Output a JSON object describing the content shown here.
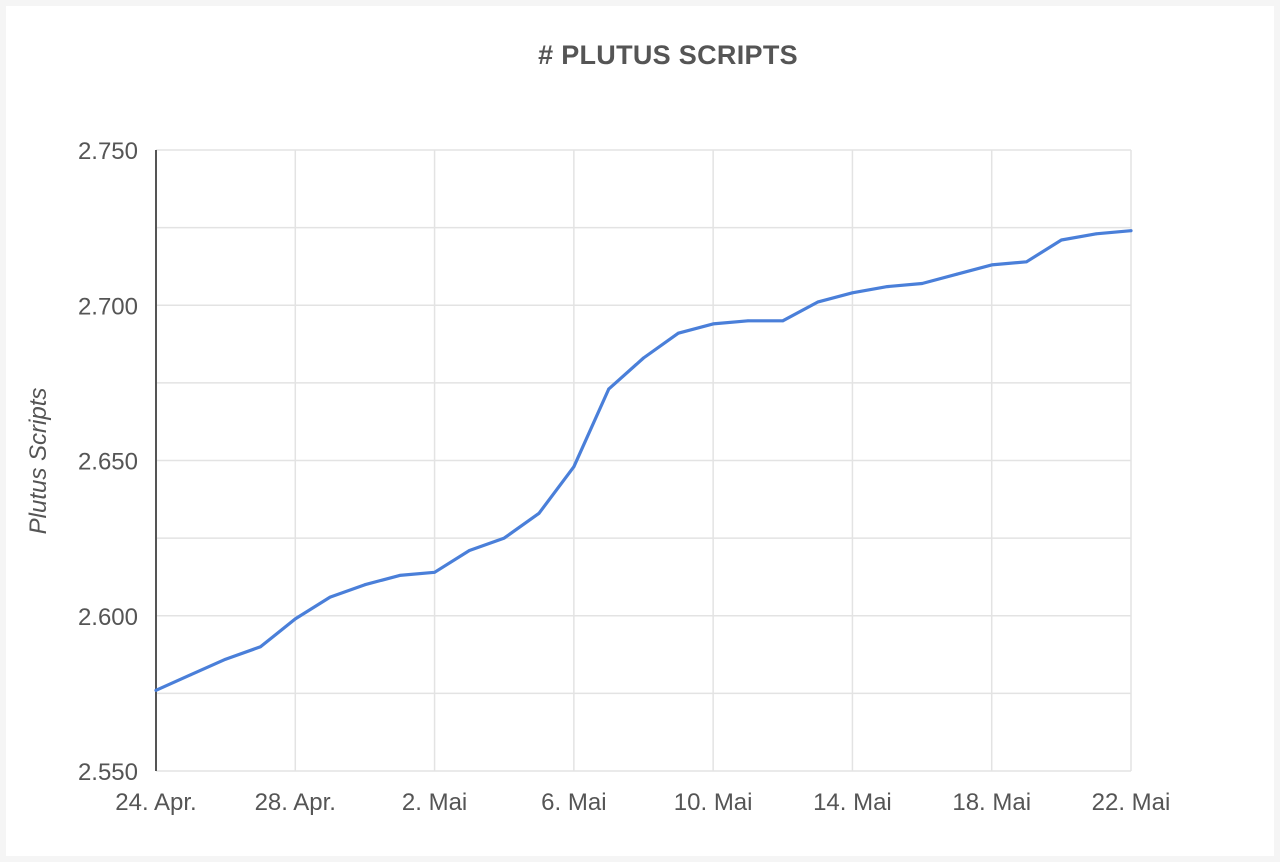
{
  "chart_data": {
    "type": "line",
    "title": "# PLUTUS SCRIPTS",
    "xlabel": "",
    "ylabel": "Plutus Scripts",
    "x_tick_labels": [
      "24. Apr.",
      "28. Apr.",
      "2. Mai",
      "6. Mai",
      "10. Mai",
      "14. Mai",
      "18. Mai",
      "22. Mai"
    ],
    "y_tick_labels": [
      "2.550",
      "2.600",
      "2.650",
      "2.700",
      "2.750"
    ],
    "ylim": [
      2550,
      2750
    ],
    "grid": true,
    "legend": "none",
    "x_dates": [
      "24. Apr.",
      "25. Apr.",
      "26. Apr.",
      "27. Apr.",
      "28. Apr.",
      "29. Apr.",
      "30. Apr.",
      "1. Mai",
      "2. Mai",
      "3. Mai",
      "4. Mai",
      "5. Mai",
      "6. Mai",
      "7. Mai",
      "8. Mai",
      "9. Mai",
      "10. Mai",
      "11. Mai",
      "12. Mai",
      "13. Mai",
      "14. Mai",
      "15. Mai",
      "16. Mai",
      "17. Mai",
      "18. Mai",
      "19. Mai",
      "20. Mai",
      "21. Mai",
      "22. Mai"
    ],
    "series": [
      {
        "values": [
          2576,
          2581,
          2586,
          2590,
          2599,
          2606,
          2610,
          2613,
          2614,
          2621,
          2625,
          2633,
          2648,
          2673,
          2683,
          2691,
          2694,
          2695,
          2695,
          2701,
          2704,
          2706,
          2707,
          2710,
          2713,
          2714,
          2721,
          2723,
          2724
        ],
        "color": "#4a7fd9"
      }
    ],
    "colors": {
      "line": "#4a7fd9",
      "grid": "#e3e3e3",
      "axis": "#555555",
      "text": "#555555"
    }
  }
}
